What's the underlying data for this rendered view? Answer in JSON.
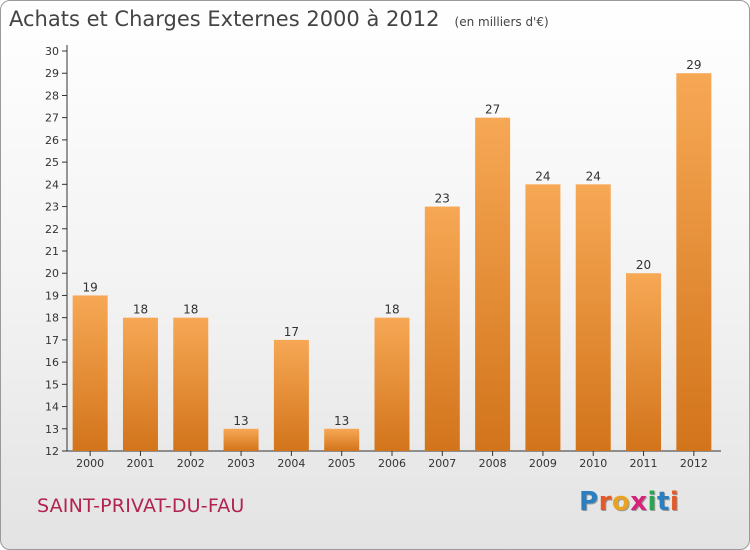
{
  "title": "Achats et Charges Externes 2000 à 2012",
  "unit": "(en milliers d'€)",
  "commune": "SAINT-PRIVAT-DU-FAU",
  "logo": {
    "p": "P",
    "r": "r",
    "o": "o",
    "x": "x",
    "i1": "i",
    "t": "t",
    "i2": "i"
  },
  "colors": {
    "bar_light": "#f7a855",
    "bar_dark": "#d2741b",
    "axis": "#333333",
    "grid": "#cccccc",
    "commune": "#b22350"
  },
  "chart_data": {
    "type": "bar",
    "title": "Achats et Charges Externes 2000 à 2012",
    "subtitle": "(en milliers d'€)",
    "xlabel": "",
    "ylabel": "",
    "categories": [
      "2000",
      "2001",
      "2002",
      "2003",
      "2004",
      "2005",
      "2006",
      "2007",
      "2008",
      "2009",
      "2010",
      "2011",
      "2012"
    ],
    "values": [
      19,
      18,
      18,
      13,
      17,
      13,
      18,
      23,
      27,
      24,
      24,
      20,
      29
    ],
    "ylim": [
      12,
      30
    ],
    "yticks": [
      12,
      13,
      14,
      15,
      16,
      17,
      18,
      19,
      20,
      21,
      22,
      23,
      24,
      25,
      26,
      27,
      28,
      29,
      30
    ],
    "grid": false,
    "data_labels": true
  }
}
